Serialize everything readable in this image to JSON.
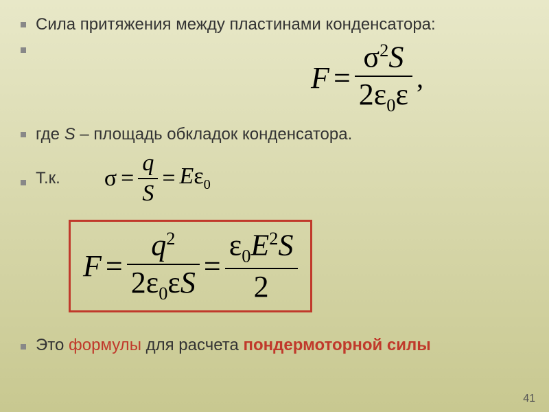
{
  "line1": "Сила притяжения между пластинами конденсатора:",
  "formula1": {
    "lhs": "F",
    "eq": "=",
    "num_sigma": "σ",
    "num_exp": "2",
    "num_S": "S",
    "den_2": "2",
    "den_eps": "ε",
    "den_sub0": "0",
    "den_eps2": "ε",
    "comma": ","
  },
  "line2_pre": "где ",
  "line2_S": "S",
  "line2_post": " – площадь обкладок конденсатора.",
  "line3": "Т.к.",
  "sigma_formula": {
    "sigma": "σ",
    "eq": "=",
    "q": "q",
    "S": "S",
    "eq2": "=",
    "E": "E",
    "eps": "ε",
    "sub0": "0"
  },
  "boxed": {
    "F": "F",
    "eq": "=",
    "q": "q",
    "exp2": "2",
    "two": "2",
    "eps": "ε",
    "sub0": "0",
    "eps2": "ε",
    "S": "S",
    "eq2": "=",
    "eps_r": "ε",
    "sub0_r": "0",
    "E": "E",
    "exp2_r": "2",
    "S_r": "S",
    "two_r": "2"
  },
  "final_pre": "Это ",
  "final_red": "формулы",
  "final_mid": " для расчета ",
  "final_bold": "пондермоторной силы",
  "page": "41",
  "colors": {
    "accent": "#c0392b",
    "text": "#333333"
  }
}
